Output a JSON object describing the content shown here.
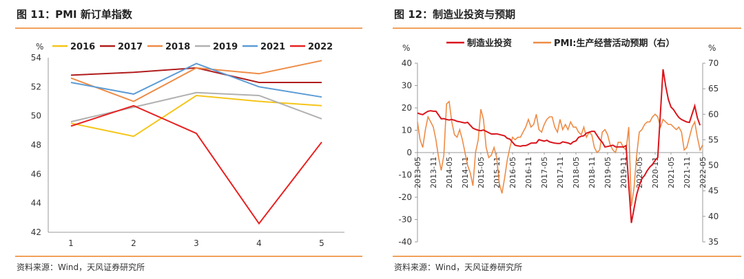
{
  "left": {
    "figure_title": "图 11：PMI 新订单指数",
    "source": "资料来源：Wind，天风证券研究所",
    "chart_data": {
      "type": "line",
      "y_unit": "%",
      "categories": [
        "1",
        "2",
        "3",
        "4",
        "5"
      ],
      "ylim": [
        42,
        54
      ],
      "yticks": [
        42,
        44,
        46,
        48,
        50,
        52,
        54
      ],
      "legend_position": "top",
      "grid": false,
      "series": [
        {
          "name": "2016",
          "color": "#f5c518",
          "values": [
            49.5,
            48.6,
            51.4,
            51.0,
            50.7
          ]
        },
        {
          "name": "2017",
          "color": "#b01c1c",
          "values": [
            52.8,
            53.0,
            53.3,
            52.3,
            52.3
          ]
        },
        {
          "name": "2018",
          "color": "#ee8b45",
          "values": [
            52.6,
            51.0,
            53.3,
            52.9,
            53.8
          ]
        },
        {
          "name": "2019",
          "color": "#b0b0b0",
          "values": [
            49.6,
            50.6,
            51.6,
            51.4,
            49.8
          ]
        },
        {
          "name": "2021",
          "color": "#5b9bd5",
          "values": [
            52.3,
            51.5,
            53.6,
            52.0,
            51.3
          ]
        },
        {
          "name": "2022",
          "color": "#e82020",
          "values": [
            49.3,
            50.7,
            48.8,
            42.6,
            48.2
          ]
        }
      ]
    }
  },
  "right": {
    "figure_title": "图 12：制造业投资与预期",
    "source": "资料来源：Wind，天风证券研究所",
    "chart_data": {
      "type": "line",
      "y_unit_left": "%",
      "y_unit_right": "%",
      "ylim_left": [
        -40,
        40
      ],
      "yticks_left": [
        -40,
        -30,
        -20,
        -10,
        0,
        10,
        20,
        30,
        40
      ],
      "ylim_right": [
        35,
        70
      ],
      "yticks_right": [
        35,
        40,
        45,
        50,
        55,
        60,
        65,
        70
      ],
      "x_start": "2013-05",
      "x_end": "2022-05",
      "xticks": [
        "2013-05",
        "2013-11",
        "2014-05",
        "2014-11",
        "2015-05",
        "2015-11",
        "2016-05",
        "2016-11",
        "2017-05",
        "2017-11",
        "2018-05",
        "2018-11",
        "2019-05",
        "2019-11",
        "2020-05",
        "2020-11",
        "2021-05",
        "2021-11",
        "2022-05"
      ],
      "legend_position": "top",
      "grid": false,
      "series": [
        {
          "name": "制造业投资",
          "axis": "left",
          "color": "#d9141b",
          "points": [
            [
              "2013-05",
              17.7
            ],
            [
              "2013-06",
              17.3
            ],
            [
              "2013-07",
              17.0
            ],
            [
              "2013-08",
              17.8
            ],
            [
              "2013-09",
              18.5
            ],
            [
              "2013-10",
              18.7
            ],
            [
              "2013-11",
              18.5
            ],
            [
              "2013-12",
              18.5
            ],
            [
              "2014-02",
              15.1
            ],
            [
              "2014-03",
              15.2
            ],
            [
              "2014-04",
              14.8
            ],
            [
              "2014-05",
              14.6
            ],
            [
              "2014-06",
              14.8
            ],
            [
              "2014-07",
              14.5
            ],
            [
              "2014-08",
              14.0
            ],
            [
              "2014-09",
              13.8
            ],
            [
              "2014-10",
              13.5
            ],
            [
              "2014-11",
              13.3
            ],
            [
              "2014-12",
              13.5
            ],
            [
              "2015-02",
              10.9
            ],
            [
              "2015-03",
              10.4
            ],
            [
              "2015-04",
              10.0
            ],
            [
              "2015-05",
              9.8
            ],
            [
              "2015-06",
              10.1
            ],
            [
              "2015-07",
              9.5
            ],
            [
              "2015-08",
              8.9
            ],
            [
              "2015-09",
              8.3
            ],
            [
              "2015-10",
              8.3
            ],
            [
              "2015-11",
              8.4
            ],
            [
              "2015-12",
              8.1
            ],
            [
              "2016-02",
              7.5
            ],
            [
              "2016-03",
              6.4
            ],
            [
              "2016-04",
              6.0
            ],
            [
              "2016-05",
              4.6
            ],
            [
              "2016-06",
              3.3
            ],
            [
              "2016-07",
              3.0
            ],
            [
              "2016-08",
              2.8
            ],
            [
              "2016-09",
              3.1
            ],
            [
              "2016-10",
              3.1
            ],
            [
              "2016-11",
              3.6
            ],
            [
              "2016-12",
              4.2
            ],
            [
              "2017-02",
              4.3
            ],
            [
              "2017-03",
              5.8
            ],
            [
              "2017-04",
              5.4
            ],
            [
              "2017-05",
              5.1
            ],
            [
              "2017-06",
              5.5
            ],
            [
              "2017-07",
              4.8
            ],
            [
              "2017-08",
              4.5
            ],
            [
              "2017-09",
              4.2
            ],
            [
              "2017-10",
              4.1
            ],
            [
              "2017-11",
              4.1
            ],
            [
              "2017-12",
              4.8
            ],
            [
              "2018-02",
              4.3
            ],
            [
              "2018-03",
              3.8
            ],
            [
              "2018-04",
              4.8
            ],
            [
              "2018-05",
              5.2
            ],
            [
              "2018-06",
              6.8
            ],
            [
              "2018-07",
              7.3
            ],
            [
              "2018-08",
              7.5
            ],
            [
              "2018-09",
              8.7
            ],
            [
              "2018-10",
              9.1
            ],
            [
              "2018-11",
              9.5
            ],
            [
              "2018-12",
              9.5
            ],
            [
              "2019-02",
              5.9
            ],
            [
              "2019-03",
              4.6
            ],
            [
              "2019-04",
              2.5
            ],
            [
              "2019-05",
              2.7
            ],
            [
              "2019-06",
              3.0
            ],
            [
              "2019-07",
              3.3
            ],
            [
              "2019-08",
              2.6
            ],
            [
              "2019-09",
              2.5
            ],
            [
              "2019-10",
              2.6
            ],
            [
              "2019-11",
              2.5
            ],
            [
              "2019-12",
              3.1
            ],
            [
              "2020-02",
              -31.5
            ],
            [
              "2020-03",
              -25.2
            ],
            [
              "2020-04",
              -18.8
            ],
            [
              "2020-05",
              -14.8
            ],
            [
              "2020-06",
              -11.7
            ],
            [
              "2020-07",
              -10.2
            ],
            [
              "2020-08",
              -8.1
            ],
            [
              "2020-09",
              -6.5
            ],
            [
              "2020-10",
              -5.3
            ],
            [
              "2020-11",
              -3.5
            ],
            [
              "2020-12",
              -2.2
            ],
            [
              "2021-02",
              37.3
            ],
            [
              "2021-03",
              29.8
            ],
            [
              "2021-04",
              23.8
            ],
            [
              "2021-05",
              20.4
            ],
            [
              "2021-06",
              19.2
            ],
            [
              "2021-07",
              17.3
            ],
            [
              "2021-08",
              15.7
            ],
            [
              "2021-09",
              14.8
            ],
            [
              "2021-10",
              14.2
            ],
            [
              "2021-11",
              13.7
            ],
            [
              "2021-12",
              13.5
            ],
            [
              "2022-02",
              20.9
            ],
            [
              "2022-03",
              15.6
            ],
            [
              "2022-04",
              12.2
            ]
          ]
        },
        {
          "name": "PMI:生产经营活动预期（右）",
          "axis": "right",
          "color": "#ee8b45",
          "points": [
            [
              "2013-05",
              58.5
            ],
            [
              "2013-06",
              55.0
            ],
            [
              "2013-07",
              53.5
            ],
            [
              "2013-08",
              57.0
            ],
            [
              "2013-09",
              59.5
            ],
            [
              "2013-10",
              58.5
            ],
            [
              "2013-11",
              57.5
            ],
            [
              "2013-12",
              55.0
            ],
            [
              "2014-01",
              51.5
            ],
            [
              "2014-02",
              49.0
            ],
            [
              "2014-03",
              52.0
            ],
            [
              "2014-04",
              62.0
            ],
            [
              "2014-05",
              62.5
            ],
            [
              "2014-06",
              58.5
            ],
            [
              "2014-07",
              56.0
            ],
            [
              "2014-08",
              55.5
            ],
            [
              "2014-09",
              57.0
            ],
            [
              "2014-10",
              55.0
            ],
            [
              "2014-11",
              52.5
            ],
            [
              "2014-12",
              50.0
            ],
            [
              "2015-01",
              48.5
            ],
            [
              "2015-02",
              46.0
            ],
            [
              "2015-03",
              52.5
            ],
            [
              "2015-04",
              55.0
            ],
            [
              "2015-05",
              61.0
            ],
            [
              "2015-06",
              59.0
            ],
            [
              "2015-07",
              53.5
            ],
            [
              "2015-08",
              51.5
            ],
            [
              "2015-09",
              52.0
            ],
            [
              "2015-10",
              53.5
            ],
            [
              "2015-11",
              51.5
            ],
            [
              "2015-12",
              46.5
            ],
            [
              "2016-01",
              44.5
            ],
            [
              "2016-02",
              47.5
            ],
            [
              "2016-03",
              51.0
            ],
            [
              "2016-04",
              53.5
            ],
            [
              "2016-05",
              55.5
            ],
            [
              "2016-06",
              55.0
            ],
            [
              "2016-07",
              55.5
            ],
            [
              "2016-08",
              55.5
            ],
            [
              "2016-09",
              56.5
            ],
            [
              "2016-10",
              57.5
            ],
            [
              "2016-11",
              59.0
            ],
            [
              "2016-12",
              57.5
            ],
            [
              "2017-01",
              58.0
            ],
            [
              "2017-02",
              60.0
            ],
            [
              "2017-03",
              57.0
            ],
            [
              "2017-04",
              56.5
            ],
            [
              "2017-05",
              58.0
            ],
            [
              "2017-06",
              59.0
            ],
            [
              "2017-07",
              59.5
            ],
            [
              "2017-08",
              59.5
            ],
            [
              "2017-09",
              57.5
            ],
            [
              "2017-10",
              56.5
            ],
            [
              "2017-11",
              59.0
            ],
            [
              "2017-12",
              57.0
            ],
            [
              "2018-01",
              58.0
            ],
            [
              "2018-02",
              57.0
            ],
            [
              "2018-03",
              58.5
            ],
            [
              "2018-04",
              57.5
            ],
            [
              "2018-05",
              57.5
            ],
            [
              "2018-06",
              56.5
            ],
            [
              "2018-07",
              56.0
            ],
            [
              "2018-08",
              57.5
            ],
            [
              "2018-09",
              55.5
            ],
            [
              "2018-10",
              56.5
            ],
            [
              "2018-11",
              56.0
            ],
            [
              "2018-12",
              53.5
            ],
            [
              "2019-01",
              52.5
            ],
            [
              "2019-02",
              53.0
            ],
            [
              "2019-03",
              56.5
            ],
            [
              "2019-04",
              57.0
            ],
            [
              "2019-05",
              56.0
            ],
            [
              "2019-06",
              54.0
            ],
            [
              "2019-07",
              53.0
            ],
            [
              "2019-08",
              52.5
            ],
            [
              "2019-09",
              54.5
            ],
            [
              "2019-10",
              54.5
            ],
            [
              "2019-11",
              53.5
            ],
            [
              "2019-12",
              53.0
            ],
            [
              "2020-01",
              57.5
            ],
            [
              "2020-02",
              42.0
            ],
            [
              "2020-03",
              45.5
            ],
            [
              "2020-04",
              52.0
            ],
            [
              "2020-05",
              56.5
            ],
            [
              "2020-06",
              57.0
            ],
            [
              "2020-07",
              58.0
            ],
            [
              "2020-08",
              58.5
            ],
            [
              "2020-09",
              58.5
            ],
            [
              "2020-10",
              59.5
            ],
            [
              "2020-11",
              60.0
            ],
            [
              "2020-12",
              59.5
            ],
            [
              "2021-01",
              57.5
            ],
            [
              "2021-02",
              59.0
            ],
            [
              "2021-03",
              58.5
            ],
            [
              "2021-04",
              58.0
            ],
            [
              "2021-05",
              58.0
            ],
            [
              "2021-06",
              57.5
            ],
            [
              "2021-07",
              57.0
            ],
            [
              "2021-08",
              57.5
            ],
            [
              "2021-09",
              56.5
            ],
            [
              "2021-10",
              53.0
            ],
            [
              "2021-11",
              53.5
            ],
            [
              "2021-12",
              55.5
            ],
            [
              "2022-01",
              57.5
            ],
            [
              "2022-02",
              58.5
            ],
            [
              "2022-03",
              55.5
            ],
            [
              "2022-04",
              53.0
            ],
            [
              "2022-05",
              54.0
            ]
          ]
        }
      ]
    }
  }
}
